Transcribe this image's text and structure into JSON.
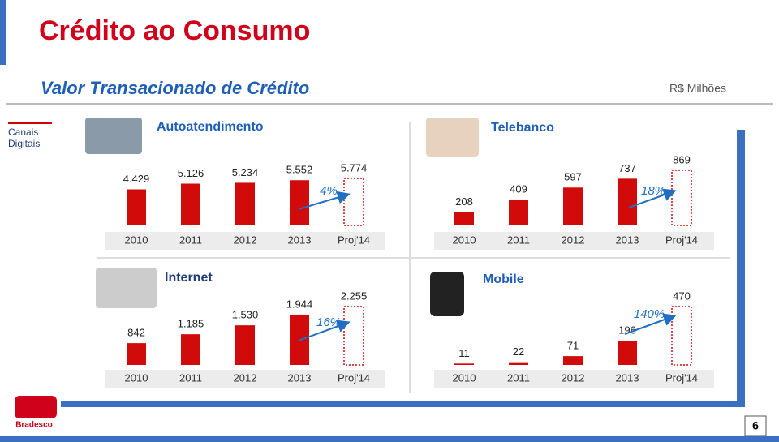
{
  "title": "Crédito ao Consumo",
  "subtitle": "Valor Transacionado de Crédito",
  "unit": "R$ Milhões",
  "side_label": "Canais Digitais",
  "brand": "Bradesco",
  "page_number": 6,
  "chart_data": [
    {
      "type": "bar",
      "title": "Autoatendimento",
      "categories": [
        "2010",
        "2011",
        "2012",
        "2013",
        "Proj'14"
      ],
      "values": [
        4429,
        5126,
        5234,
        5552,
        5774
      ],
      "value_labels": [
        "4.429",
        "5.126",
        "5.234",
        "5.552",
        "5.774"
      ],
      "annotation": "4%",
      "color": "#d10a0a"
    },
    {
      "type": "bar",
      "title": "Telebanco",
      "categories": [
        "2010",
        "2011",
        "2012",
        "2013",
        "Proj'14"
      ],
      "values": [
        208,
        409,
        597,
        737,
        869
      ],
      "annotation": "18%",
      "color": "#d10a0a"
    },
    {
      "type": "bar",
      "title": "Internet",
      "categories": [
        "2010",
        "2011",
        "2012",
        "2013",
        "Proj'14"
      ],
      "values": [
        842,
        1185,
        1530,
        1944,
        2255
      ],
      "value_labels": [
        "842",
        "1.185",
        "1.530",
        "1.944",
        "2.255"
      ],
      "annotation": "16%",
      "color": "#d10a0a"
    },
    {
      "type": "bar",
      "title": "Mobile",
      "categories": [
        "2010",
        "2011",
        "2012",
        "2013",
        "Proj'14"
      ],
      "values": [
        11,
        22,
        71,
        196,
        470
      ],
      "annotation": "140%",
      "color": "#d10a0a"
    }
  ]
}
